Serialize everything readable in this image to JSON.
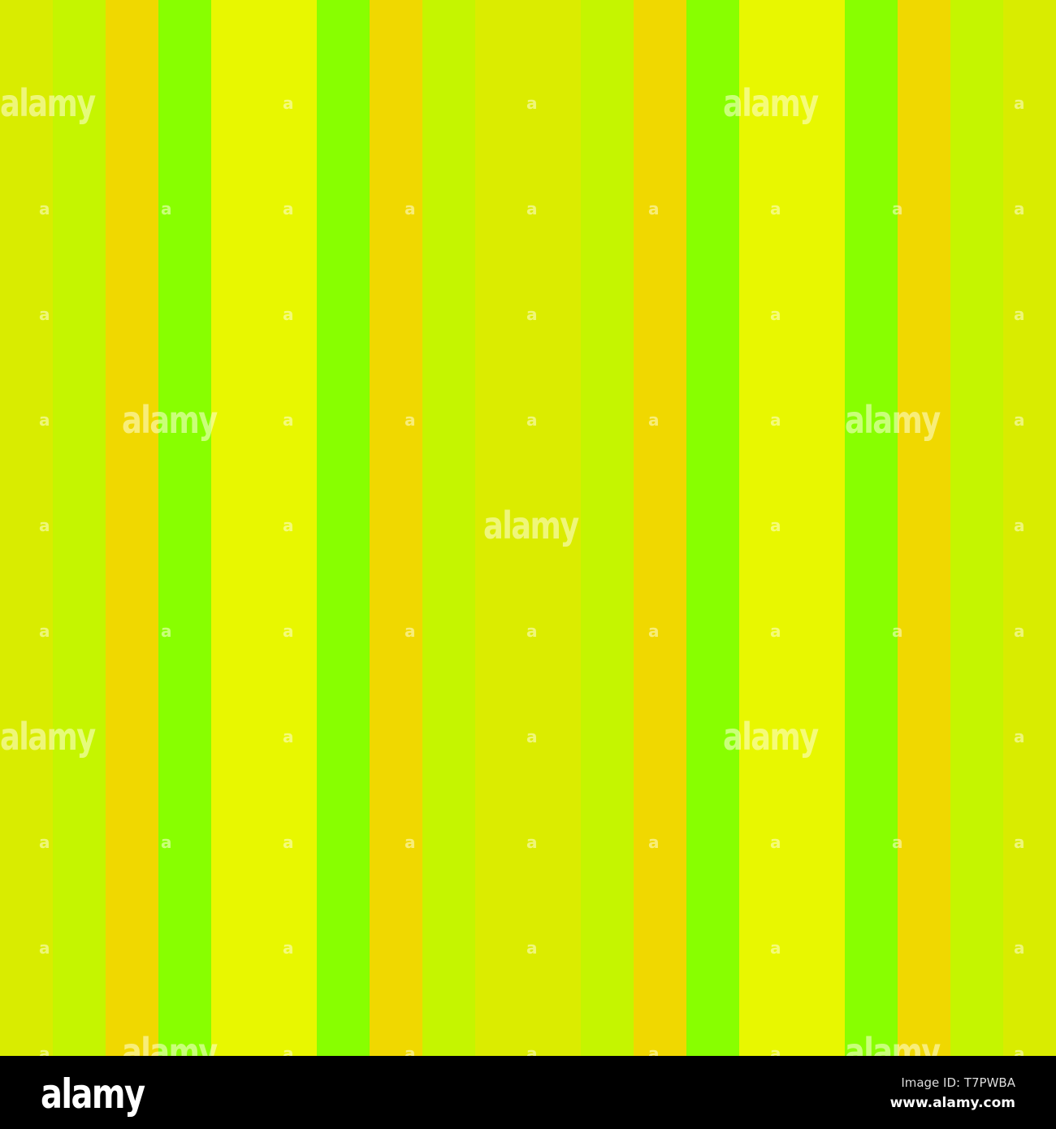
{
  "stripes": [
    "#d9ec00",
    "#c5f500",
    "#f0d800",
    "#88ff00",
    "#e8f700",
    "#e8f700",
    "#88ff00",
    "#f0d800",
    "#c5f500",
    "#dbec00",
    "#dbec00",
    "#c5f500",
    "#f0d800",
    "#88ff00",
    "#e8f700",
    "#e8f700",
    "#88ff00",
    "#f0d800",
    "#c5f500",
    "#d9ec00"
  ],
  "watermark": {
    "logo_text": "alamy",
    "small_mark": "a"
  },
  "footer": {
    "logo": "alamy",
    "image_id": "Image ID: T7PWBA",
    "site": "www.alamy.com"
  }
}
